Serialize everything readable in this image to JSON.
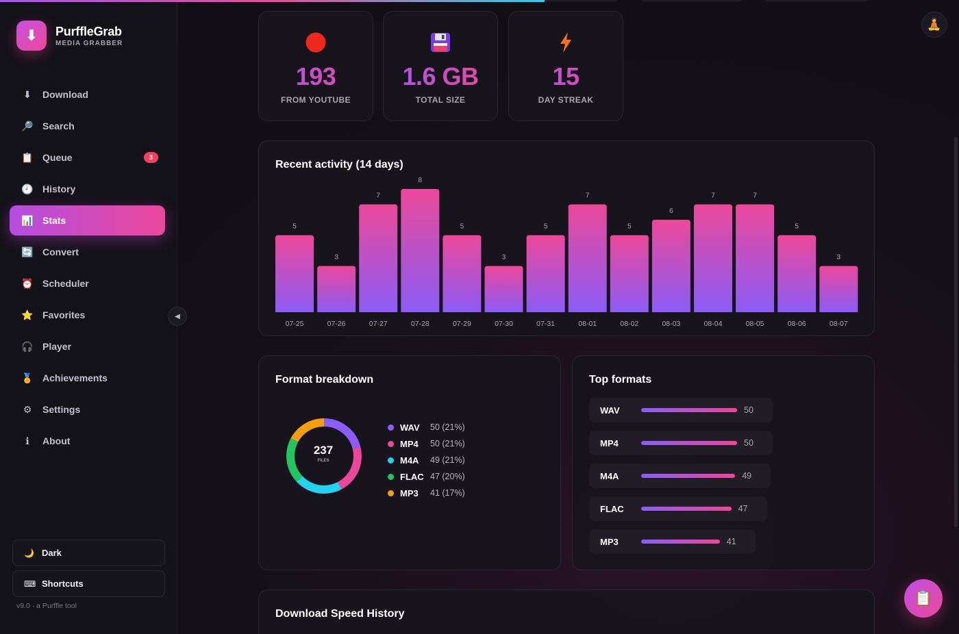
{
  "app": {
    "name": "PurffleGrab",
    "subtitle": "MEDIA GRABBER",
    "version": "v9.0 · a Purffle tool",
    "top_progress_fraction": 0.568
  },
  "sidebar": {
    "items": [
      {
        "label": "Download",
        "icon": "arrow-down-icon",
        "glyph": "⬇"
      },
      {
        "label": "Search",
        "icon": "search-icon",
        "glyph": "🔎"
      },
      {
        "label": "Queue",
        "icon": "clipboard-icon",
        "glyph": "📋",
        "badge": "3"
      },
      {
        "label": "History",
        "icon": "clock-icon",
        "glyph": "🕘"
      },
      {
        "label": "Stats",
        "icon": "bar-chart-icon",
        "glyph": "📊",
        "active": true
      },
      {
        "label": "Convert",
        "icon": "convert-icon",
        "glyph": "🔄"
      },
      {
        "label": "Scheduler",
        "icon": "alarm-clock-icon",
        "glyph": "⏰"
      },
      {
        "label": "Favorites",
        "icon": "star-icon",
        "glyph": "⭐"
      },
      {
        "label": "Player",
        "icon": "headphones-icon",
        "glyph": "🎧"
      },
      {
        "label": "Achievements",
        "icon": "medal-icon",
        "glyph": "🏅"
      },
      {
        "label": "Settings",
        "icon": "gear-icon",
        "glyph": "⚙"
      },
      {
        "label": "About",
        "icon": "info-icon",
        "glyph": "ℹ"
      }
    ],
    "theme_button": "Dark",
    "shortcuts_button": "Shortcuts"
  },
  "stats": [
    {
      "value": "193",
      "label": "FROM YOUTUBE",
      "icon": "red-circle-icon"
    },
    {
      "value": "1.6 GB",
      "label": "TOTAL SIZE",
      "icon": "floppy-disk-icon"
    },
    {
      "value": "15",
      "label": "DAY STREAK",
      "icon": "lightning-icon"
    }
  ],
  "activity": {
    "title": "Recent activity (14 days)"
  },
  "formats": {
    "breakdown_title": "Format breakdown",
    "top_title": "Top formats",
    "total": "237",
    "total_label": "FILES",
    "items": [
      {
        "name": "WAV",
        "count": 50,
        "pct": "50 (21%)",
        "color": "#8b5cf6"
      },
      {
        "name": "MP4",
        "count": 50,
        "pct": "50 (21%)",
        "color": "#ec4899"
      },
      {
        "name": "M4A",
        "count": 49,
        "pct": "49 (21%)",
        "color": "#22d3ee"
      },
      {
        "name": "FLAC",
        "count": 47,
        "pct": "47 (20%)",
        "color": "#22c55e"
      },
      {
        "name": "MP3",
        "count": 41,
        "pct": "41 (17%)",
        "color": "#f59e0b"
      }
    ]
  },
  "speed": {
    "title": "Download Speed History"
  },
  "chart_data": [
    {
      "type": "bar",
      "title": "Recent activity (14 days)",
      "categories": [
        "07-25",
        "07-26",
        "07-27",
        "07-28",
        "07-29",
        "07-30",
        "07-31",
        "08-01",
        "08-02",
        "08-03",
        "08-04",
        "08-05",
        "08-06",
        "08-07"
      ],
      "values": [
        5,
        3,
        7,
        8,
        5,
        3,
        5,
        7,
        5,
        6,
        7,
        7,
        5,
        3
      ],
      "xlabel": "",
      "ylabel": "",
      "ylim": [
        0,
        8
      ]
    },
    {
      "type": "pie",
      "title": "Format breakdown",
      "categories": [
        "WAV",
        "MP4",
        "M4A",
        "FLAC",
        "MP3"
      ],
      "values": [
        50,
        50,
        49,
        47,
        41
      ]
    }
  ]
}
